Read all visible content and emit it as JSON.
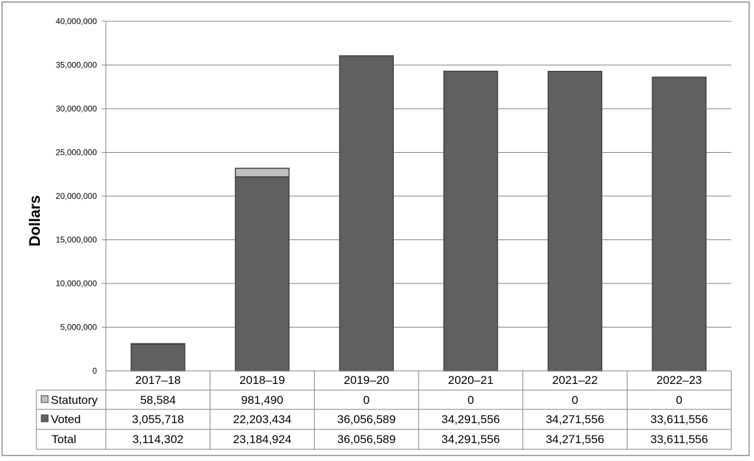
{
  "chart_data": {
    "type": "bar",
    "stacked": true,
    "ylabel": "Dollars",
    "ylim": [
      0,
      40000000
    ],
    "yticks": [
      "0",
      "5,000,000",
      "10,000,000",
      "15,000,000",
      "20,000,000",
      "25,000,000",
      "30,000,000",
      "35,000,000",
      "40,000,000"
    ],
    "ytick_values": [
      0,
      5000000,
      10000000,
      15000000,
      20000000,
      25000000,
      30000000,
      35000000,
      40000000
    ],
    "grid": true,
    "legend": "data-table-rows",
    "categories": [
      "2017–18",
      "2018–19",
      "2019–20",
      "2020–21",
      "2021–22",
      "2022–23"
    ],
    "series": [
      {
        "name": "Statutory",
        "color": "#c0c0c0",
        "values": [
          58584,
          981490,
          0,
          0,
          0,
          0
        ],
        "labels": [
          "58,584",
          "981,490",
          "0",
          "0",
          "0",
          "0"
        ]
      },
      {
        "name": "Voted",
        "color": "#606060",
        "values": [
          3055718,
          22203434,
          36056589,
          34291556,
          34271556,
          33611556
        ],
        "labels": [
          "3,055,718",
          "22,203,434",
          "36,056,589",
          "34,291,556",
          "34,271,556",
          "33,611,556"
        ]
      }
    ],
    "total": {
      "name": "Total",
      "values": [
        3114302,
        23184924,
        36056589,
        34291556,
        34271556,
        33611556
      ],
      "labels": [
        "3,114,302",
        "23,184,924",
        "36,056,589",
        "34,291,556",
        "34,271,556",
        "33,611,556"
      ]
    }
  }
}
